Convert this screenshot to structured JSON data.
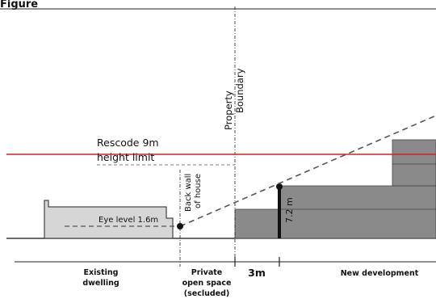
{
  "header": {
    "title": "Figure"
  },
  "labels": {
    "property_boundary_line1": "Property",
    "property_boundary_line2": "Boundary",
    "rescode_line1": "Rescode 9m",
    "rescode_line2": "height limit",
    "back_wall_line1": "Back wall",
    "back_wall_line2": "of house",
    "eye_level": "Eye level 1.6m",
    "height_dim": "7.2 m"
  },
  "sections": {
    "existing_line1": "Existing",
    "existing_line2": "dwelling",
    "private_line1": "Private",
    "private_line2": "open space",
    "private_line3": "(secluded)",
    "setback": "3m",
    "new_development": "New development"
  },
  "colors": {
    "height_limit": "#d6202a",
    "existing_fill": "#d6d6d6",
    "new_fill": "#8a8a8a",
    "header_accent": "#e01b24"
  }
}
